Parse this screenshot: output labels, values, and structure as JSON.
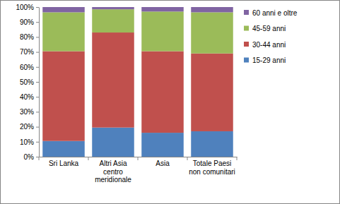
{
  "chart_data": {
    "type": "bar",
    "stacked": true,
    "grid": false,
    "legend": "right",
    "categories": [
      "Sri Lanka",
      "Altri Asia centro meridionale",
      "Asia",
      "Totale Paesi non comunitari"
    ],
    "series": [
      {
        "name": "15-29 anni",
        "color": "#4f81bd",
        "values": [
          10.5,
          19.5,
          16,
          17
        ]
      },
      {
        "name": "30-44 anni",
        "color": "#c0504d",
        "values": [
          60,
          63.5,
          54.5,
          52
        ]
      },
      {
        "name": "45-59 anni",
        "color": "#9bbb59",
        "values": [
          26,
          15.5,
          26.5,
          27.5
        ]
      },
      {
        "name": "60 anni e oltre",
        "color": "#8064a2",
        "values": [
          3.5,
          1.5,
          3,
          3.5
        ]
      }
    ],
    "ylim": [
      0,
      100
    ],
    "yticks": [
      {
        "value": 0,
        "label": "0%"
      },
      {
        "value": 10,
        "label": "10%"
      },
      {
        "value": 20,
        "label": "20%"
      },
      {
        "value": 30,
        "label": "30%"
      },
      {
        "value": 40,
        "label": "40%"
      },
      {
        "value": 50,
        "label": "50%"
      },
      {
        "value": 60,
        "label": "60%"
      },
      {
        "value": 70,
        "label": "70%"
      },
      {
        "value": 80,
        "label": "80%"
      },
      {
        "value": 90,
        "label": "90%"
      },
      {
        "value": 100,
        "label": "100%"
      }
    ]
  }
}
